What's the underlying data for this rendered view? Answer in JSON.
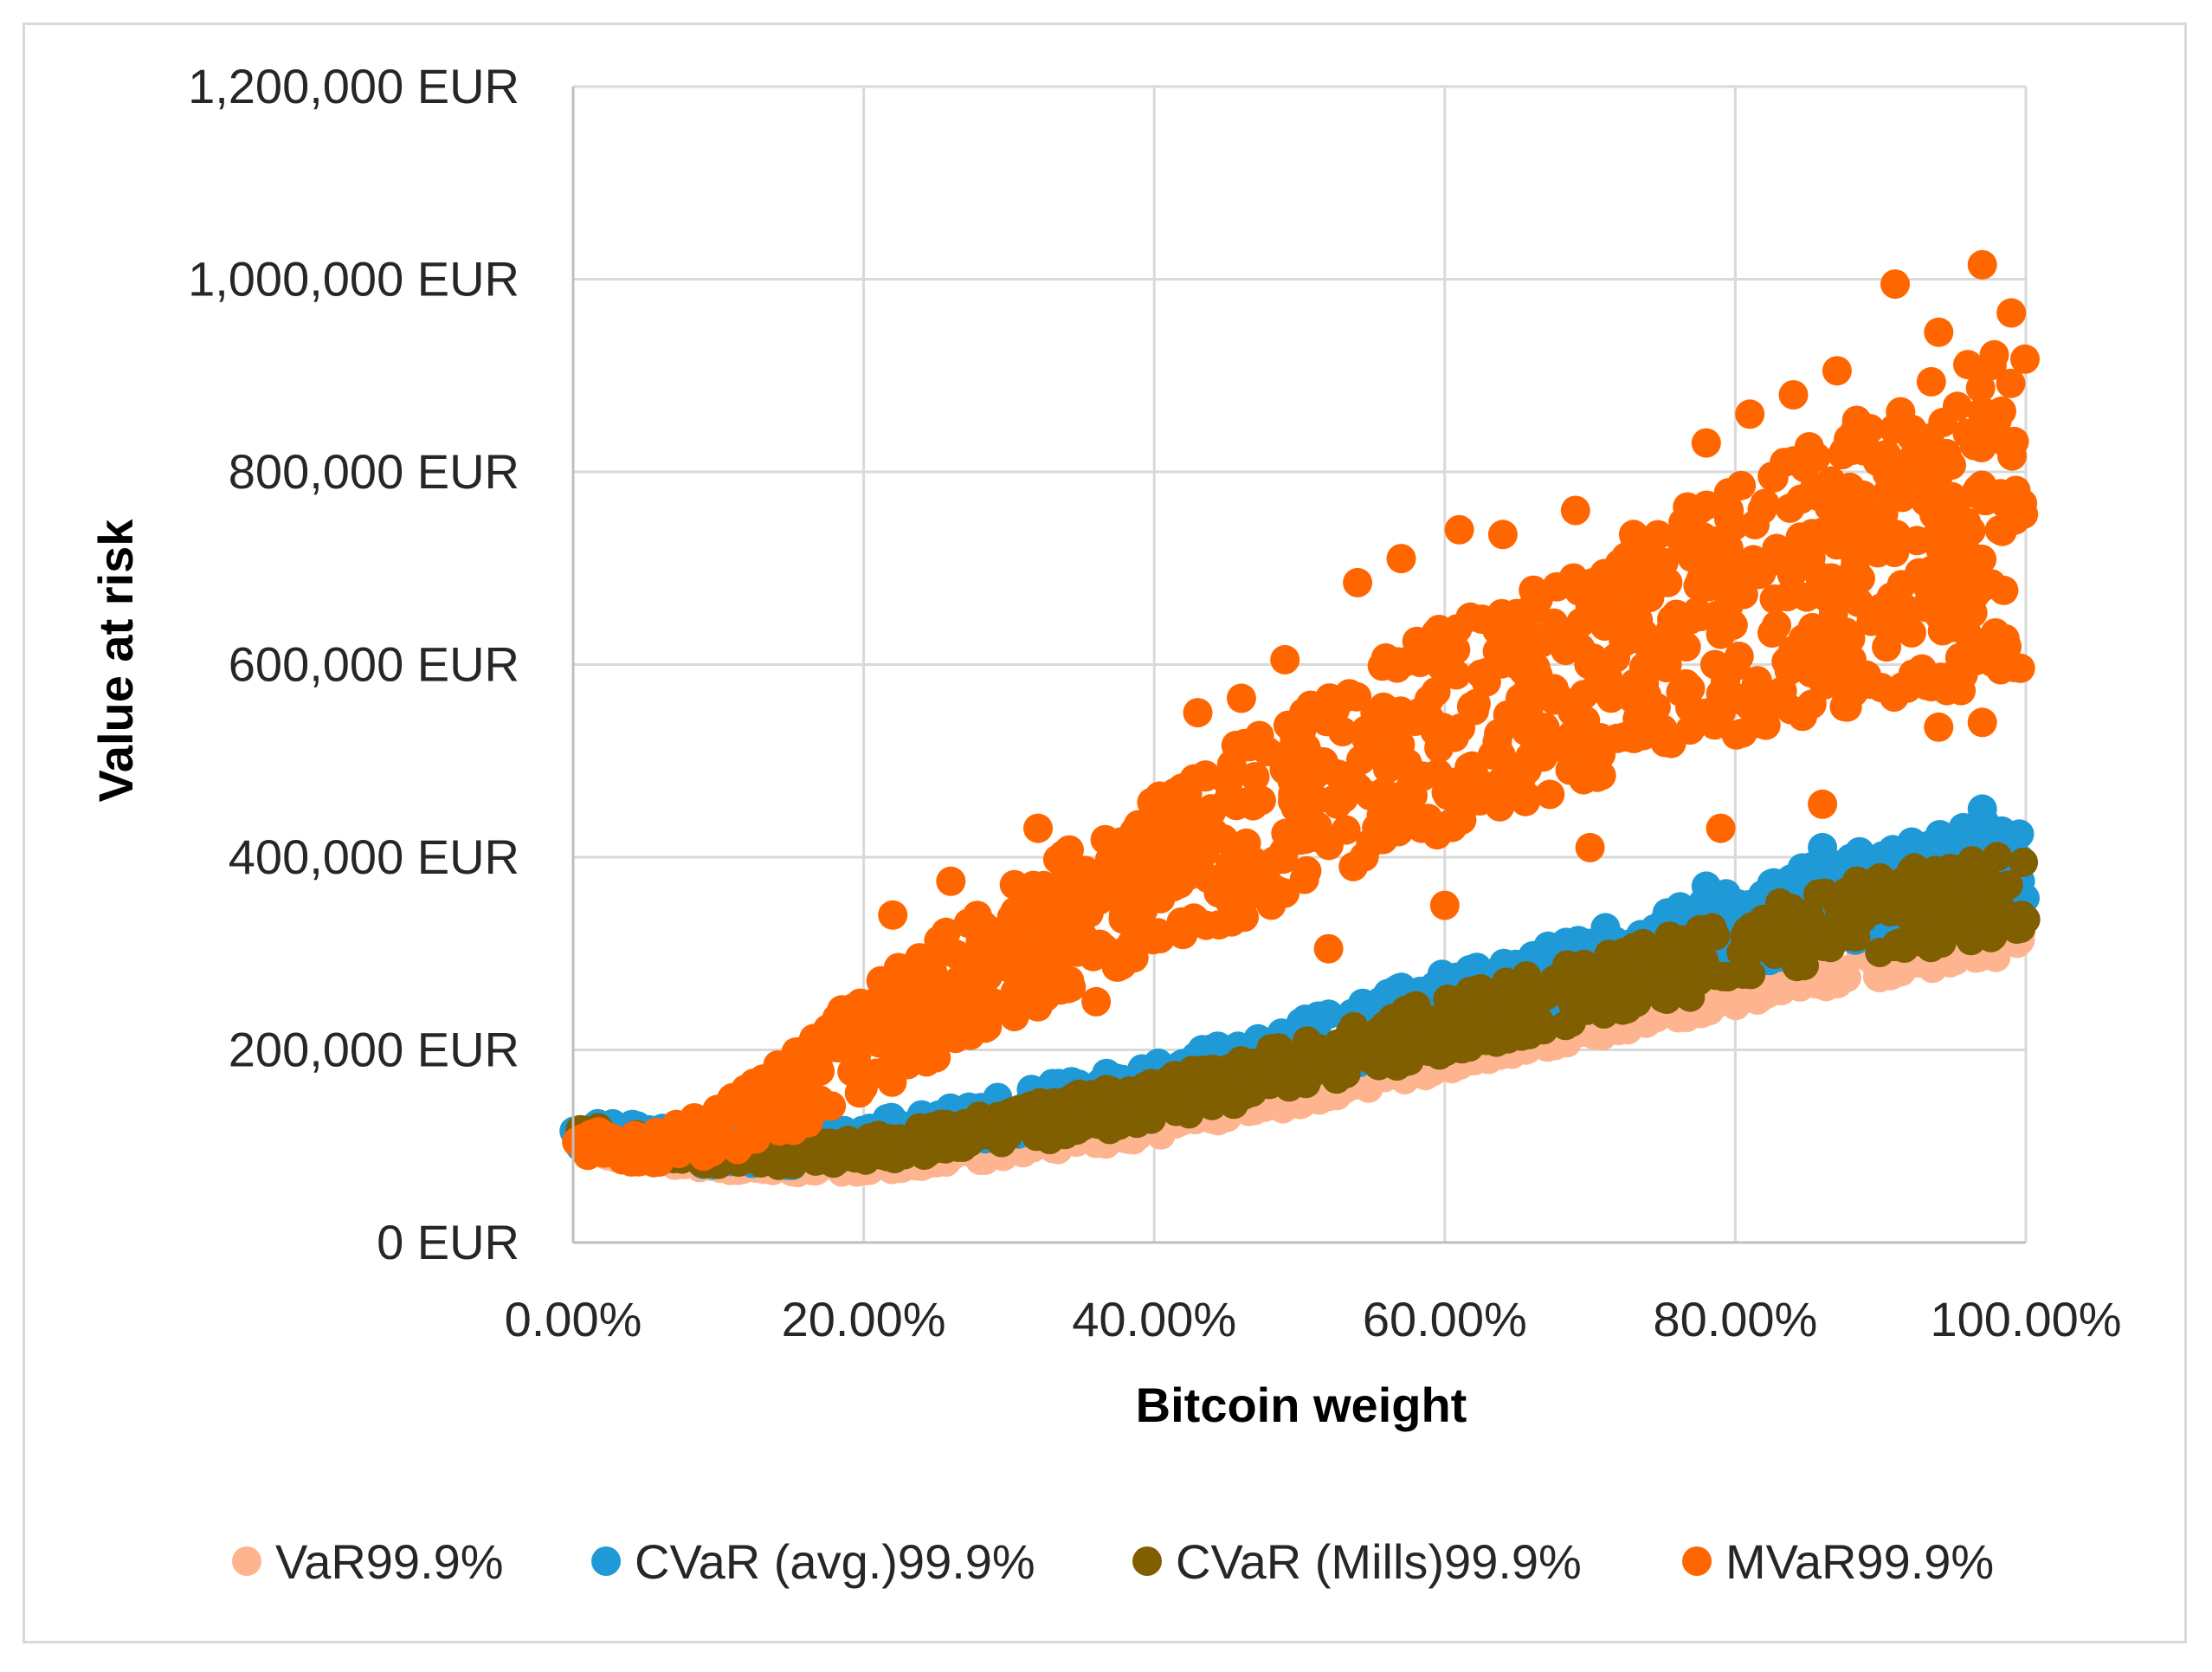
{
  "chart_data": {
    "type": "scatter",
    "title": "",
    "xlabel": "Bitcoin weight",
    "ylabel": "Value at risk",
    "xlim": [
      0,
      1
    ],
    "ylim": [
      0,
      1200000
    ],
    "x_ticks": [
      {
        "value": 0.0,
        "label": "0.00%"
      },
      {
        "value": 0.2,
        "label": "20.00%"
      },
      {
        "value": 0.4,
        "label": "40.00%"
      },
      {
        "value": 0.6,
        "label": "60.00%"
      },
      {
        "value": 0.8,
        "label": "80.00%"
      },
      {
        "value": 1.0,
        "label": "100.00%"
      }
    ],
    "y_ticks": [
      {
        "value": 0,
        "label": "0 EUR"
      },
      {
        "value": 200000,
        "label": "200,000 EUR"
      },
      {
        "value": 400000,
        "label": "400,000 EUR"
      },
      {
        "value": 600000,
        "label": "600,000 EUR"
      },
      {
        "value": 800000,
        "label": "800,000 EUR"
      },
      {
        "value": 1000000,
        "label": "1,000,000 EUR"
      },
      {
        "value": 1200000,
        "label": "1,200,000 EUR"
      }
    ],
    "grid": true,
    "legend_position": "bottom",
    "series": [
      {
        "name": "VaR99.9%",
        "color": "#FDB48F",
        "x": [
          0.0,
          0.05,
          0.1,
          0.15,
          0.2,
          0.25,
          0.3,
          0.35,
          0.4,
          0.45,
          0.5,
          0.55,
          0.6,
          0.65,
          0.7,
          0.75,
          0.8,
          0.85,
          0.9,
          0.95,
          1.0
        ],
        "lower": [
          95000,
          82000,
          75000,
          72000,
          73000,
          80000,
          88000,
          98000,
          110000,
          125000,
          142000,
          160000,
          178000,
          196000,
          212000,
          228000,
          245000,
          262000,
          275000,
          288000,
          300000
        ],
        "upper": [
          115000,
          100000,
          90000,
          88000,
          90000,
          100000,
          112000,
          125000,
          140000,
          155000,
          172000,
          190000,
          208000,
          226000,
          242000,
          258000,
          275000,
          292000,
          305000,
          318000,
          330000
        ]
      },
      {
        "name": "CVaR (avg.)99.9%",
        "color": "#1F9AD6",
        "x": [
          0.0,
          0.05,
          0.1,
          0.15,
          0.2,
          0.25,
          0.3,
          0.35,
          0.4,
          0.45,
          0.5,
          0.55,
          0.6,
          0.65,
          0.7,
          0.75,
          0.8,
          0.85,
          0.9,
          0.95,
          1.0
        ],
        "lower": [
          95000,
          85000,
          80000,
          80000,
          85000,
          95000,
          108000,
          122000,
          138000,
          155000,
          172000,
          190000,
          210000,
          228000,
          246000,
          264000,
          282000,
          300000,
          315000,
          330000,
          340000
        ],
        "upper": [
          140000,
          125000,
          112000,
          115000,
          125000,
          138000,
          155000,
          172000,
          190000,
          208000,
          230000,
          255000,
          280000,
          302000,
          322000,
          345000,
          365000,
          392000,
          415000,
          432000,
          445000
        ]
      },
      {
        "name": "CVaR (Mills)99.9%",
        "color": "#7F5F00",
        "x": [
          0.0,
          0.05,
          0.1,
          0.15,
          0.2,
          0.25,
          0.3,
          0.35,
          0.4,
          0.45,
          0.5,
          0.55,
          0.6,
          0.65,
          0.7,
          0.75,
          0.8,
          0.85,
          0.9,
          0.95,
          1.0
        ],
        "lower": [
          100000,
          88000,
          80000,
          80000,
          82000,
          90000,
          100000,
          112000,
          125000,
          140000,
          158000,
          176000,
          195000,
          213000,
          230000,
          248000,
          265000,
          282000,
          296000,
          310000,
          322000
        ],
        "upper": [
          128000,
          112000,
          100000,
          102000,
          110000,
          122000,
          138000,
          155000,
          172000,
          190000,
          210000,
          232000,
          255000,
          275000,
          295000,
          318000,
          338000,
          362000,
          382000,
          398000,
          412000
        ]
      },
      {
        "name": "MVaR99.9%",
        "color": "#FF6600",
        "x": [
          0.0,
          0.05,
          0.1,
          0.15,
          0.2,
          0.25,
          0.3,
          0.35,
          0.4,
          0.45,
          0.5,
          0.55,
          0.6,
          0.65,
          0.7,
          0.75,
          0.8,
          0.85,
          0.9,
          0.95,
          1.0
        ],
        "lower": [
          90000,
          82000,
          90000,
          115000,
          150000,
          190000,
          230000,
          265000,
          300000,
          330000,
          360000,
          390000,
          420000,
          450000,
          480000,
          500000,
          520000,
          540000,
          555000,
          570000,
          580000
        ],
        "upper": [
          120000,
          110000,
          140000,
          200000,
          260000,
          320000,
          370000,
          420000,
          460000,
          510000,
          560000,
          600000,
          640000,
          670000,
          710000,
          750000,
          790000,
          830000,
          870000,
          910000,
          940000
        ]
      }
    ],
    "outliers": {
      "MVaR99.9%": [
        {
          "x": 0.22,
          "y": 340000
        },
        {
          "x": 0.26,
          "y": 375000
        },
        {
          "x": 0.32,
          "y": 430000
        },
        {
          "x": 0.43,
          "y": 550000
        },
        {
          "x": 0.46,
          "y": 565000
        },
        {
          "x": 0.49,
          "y": 605000
        },
        {
          "x": 0.54,
          "y": 685000
        },
        {
          "x": 0.57,
          "y": 710000
        },
        {
          "x": 0.61,
          "y": 740000
        },
        {
          "x": 0.64,
          "y": 735000
        },
        {
          "x": 0.69,
          "y": 760000
        },
        {
          "x": 0.73,
          "y": 735000
        },
        {
          "x": 0.78,
          "y": 830000
        },
        {
          "x": 0.81,
          "y": 860000
        },
        {
          "x": 0.84,
          "y": 880000
        },
        {
          "x": 0.87,
          "y": 905000
        },
        {
          "x": 0.91,
          "y": 995000
        },
        {
          "x": 0.94,
          "y": 945000
        },
        {
          "x": 0.97,
          "y": 1015000
        },
        {
          "x": 0.99,
          "y": 965000
        },
        {
          "x": 0.23,
          "y": 220000
        },
        {
          "x": 0.36,
          "y": 250000
        },
        {
          "x": 0.52,
          "y": 305000
        },
        {
          "x": 0.6,
          "y": 350000
        },
        {
          "x": 0.7,
          "y": 410000
        },
        {
          "x": 0.79,
          "y": 430000
        },
        {
          "x": 0.86,
          "y": 455000
        },
        {
          "x": 0.94,
          "y": 535000
        },
        {
          "x": 0.97,
          "y": 540000
        }
      ],
      "CVaR (avg.)99.9%": [
        {
          "x": 0.86,
          "y": 410000
        },
        {
          "x": 0.97,
          "y": 450000
        },
        {
          "x": 0.78,
          "y": 370000
        }
      ]
    }
  }
}
